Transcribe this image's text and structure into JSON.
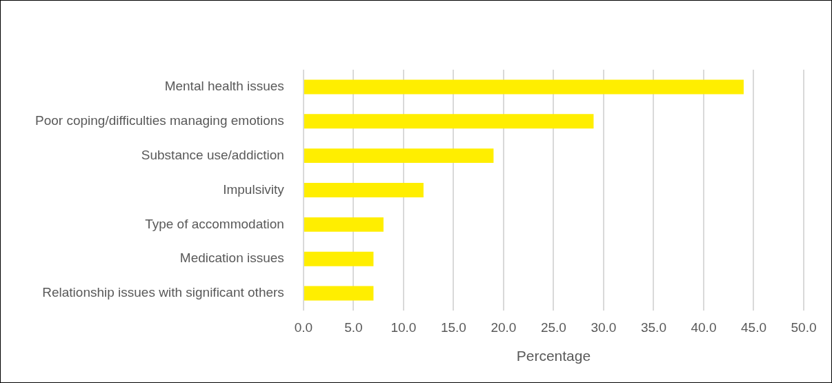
{
  "chart_data": {
    "type": "bar",
    "orientation": "horizontal",
    "xlabel": "Percentage",
    "categories": [
      "Mental health issues",
      "Poor coping/difficulties managing emotions",
      "Substance use/addiction",
      "Impulsivity",
      "Type of accommodation",
      "Medication issues",
      "Relationship issues with significant others"
    ],
    "values": [
      44,
      29,
      19,
      12,
      8,
      7,
      7
    ],
    "color": "#ffee00",
    "xlim": [
      0,
      50
    ],
    "xticks": [
      {
        "value": 0,
        "label": "0.0"
      },
      {
        "value": 5,
        "label": "5.0"
      },
      {
        "value": 10,
        "label": "10.0"
      },
      {
        "value": 15,
        "label": "15.0"
      },
      {
        "value": 20,
        "label": "20.0"
      },
      {
        "value": 25,
        "label": "25.0"
      },
      {
        "value": 30,
        "label": "30.0"
      },
      {
        "value": 35,
        "label": "35.0"
      },
      {
        "value": 40,
        "label": "40.0"
      },
      {
        "value": 45,
        "label": "45.0"
      },
      {
        "value": 50,
        "label": "50.0"
      }
    ],
    "grid": "x",
    "legend": false
  }
}
